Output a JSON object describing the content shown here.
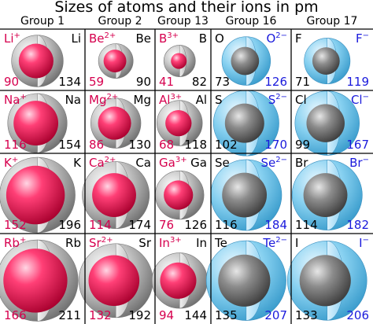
{
  "title": "Sizes of atoms and their ions in pm",
  "groups": [
    "Group 1",
    "Group 2",
    "Group 13",
    "Group 16",
    "Group 17"
  ],
  "colors": {
    "cation": "#d6004e",
    "anion_label": "#1a1adc",
    "atom_shell": "#a8a8a8",
    "cation_shell": "#e0003c",
    "anion_shell": "#5bbce6",
    "grid": "#000000"
  },
  "rows": [
    [
      {
        "ion": "Li",
        "charge": "+",
        "ion_pm": "90",
        "atom": "Li",
        "atom_pm": "134",
        "type": "cation"
      },
      {
        "ion": "Be",
        "charge": "2+",
        "ion_pm": "59",
        "atom": "Be",
        "atom_pm": "90",
        "type": "cation"
      },
      {
        "ion": "B",
        "charge": "3+",
        "ion_pm": "41",
        "atom": "B",
        "atom_pm": "82",
        "type": "cation"
      },
      {
        "ion": "O",
        "charge": "2−",
        "ion_pm": "126",
        "atom": "O",
        "atom_pm": "73",
        "type": "anion"
      },
      {
        "ion": "F",
        "charge": "−",
        "ion_pm": "119",
        "atom": "F",
        "atom_pm": "71",
        "type": "anion"
      }
    ],
    [
      {
        "ion": "Na",
        "charge": "+",
        "ion_pm": "116",
        "atom": "Na",
        "atom_pm": "154",
        "type": "cation"
      },
      {
        "ion": "Mg",
        "charge": "2+",
        "ion_pm": "86",
        "atom": "Mg",
        "atom_pm": "130",
        "type": "cation"
      },
      {
        "ion": "Al",
        "charge": "3+",
        "ion_pm": "68",
        "atom": "Al",
        "atom_pm": "118",
        "type": "cation"
      },
      {
        "ion": "S",
        "charge": "2−",
        "ion_pm": "170",
        "atom": "S",
        "atom_pm": "102",
        "type": "anion"
      },
      {
        "ion": "Cl",
        "charge": "−",
        "ion_pm": "167",
        "atom": "Cl",
        "atom_pm": "99",
        "type": "anion"
      }
    ],
    [
      {
        "ion": "K",
        "charge": "+",
        "ion_pm": "152",
        "atom": "K",
        "atom_pm": "196",
        "type": "cation"
      },
      {
        "ion": "Ca",
        "charge": "2+",
        "ion_pm": "114",
        "atom": "Ca",
        "atom_pm": "174",
        "type": "cation"
      },
      {
        "ion": "Ga",
        "charge": "3+",
        "ion_pm": "76",
        "atom": "Ga",
        "atom_pm": "126",
        "type": "cation"
      },
      {
        "ion": "Se",
        "charge": "2−",
        "ion_pm": "184",
        "atom": "Se",
        "atom_pm": "116",
        "type": "anion"
      },
      {
        "ion": "Br",
        "charge": "−",
        "ion_pm": "182",
        "atom": "Br",
        "atom_pm": "114",
        "type": "anion"
      }
    ],
    [
      {
        "ion": "Rb",
        "charge": "+",
        "ion_pm": "166",
        "atom": "Rb",
        "atom_pm": "211",
        "type": "cation"
      },
      {
        "ion": "Sr",
        "charge": "2+",
        "ion_pm": "132",
        "atom": "Sr",
        "atom_pm": "192",
        "type": "cation"
      },
      {
        "ion": "In",
        "charge": "3+",
        "ion_pm": "94",
        "atom": "In",
        "atom_pm": "144",
        "type": "cation"
      },
      {
        "ion": "Te",
        "charge": "2−",
        "ion_pm": "207",
        "atom": "Te",
        "atom_pm": "135",
        "type": "anion"
      },
      {
        "ion": "I",
        "charge": "−",
        "ion_pm": "206",
        "atom": "I",
        "atom_pm": "133",
        "type": "anion"
      }
    ]
  ]
}
